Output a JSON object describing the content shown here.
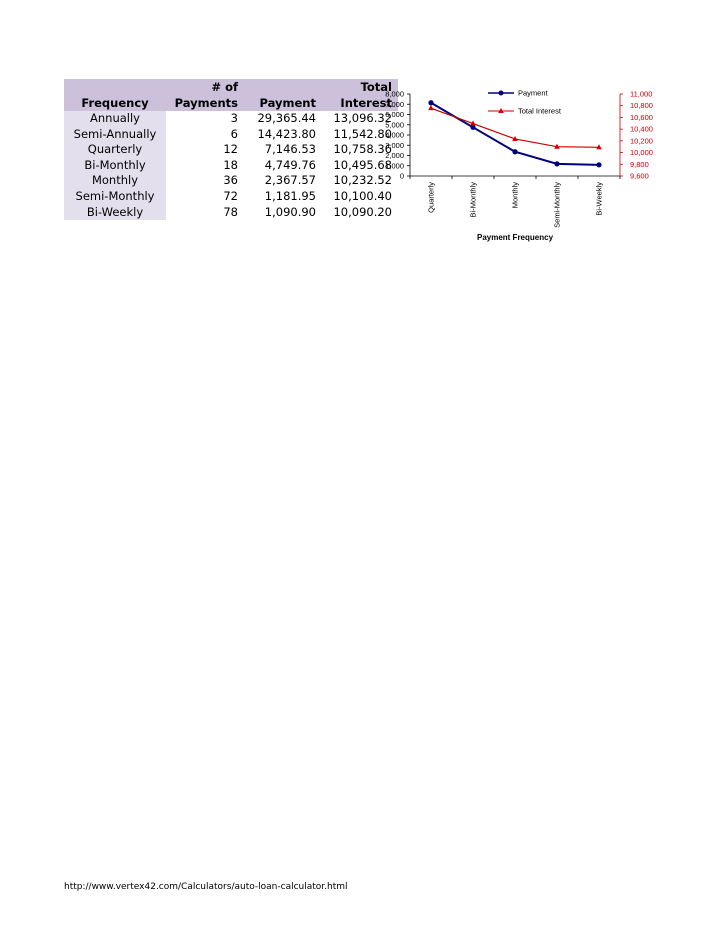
{
  "table": {
    "headers": {
      "frequency": [
        "",
        "Frequency"
      ],
      "num_payments": [
        "# of",
        "Payments"
      ],
      "payment": [
        "",
        "Payment"
      ],
      "total_interest": [
        "Total",
        "Interest"
      ]
    },
    "rows": [
      {
        "frequency": "Annually",
        "num_payments": "3",
        "payment": "29,365.44",
        "total_interest": "13,096.32"
      },
      {
        "frequency": "Semi-Annually",
        "num_payments": "6",
        "payment": "14,423.80",
        "total_interest": "11,542.80"
      },
      {
        "frequency": "Quarterly",
        "num_payments": "12",
        "payment": "7,146.53",
        "total_interest": "10,758.36"
      },
      {
        "frequency": "Bi-Monthly",
        "num_payments": "18",
        "payment": "4,749.76",
        "total_interest": "10,495.68"
      },
      {
        "frequency": "Monthly",
        "num_payments": "36",
        "payment": "2,367.57",
        "total_interest": "10,232.52"
      },
      {
        "frequency": "Semi-Monthly",
        "num_payments": "72",
        "payment": "1,181.95",
        "total_interest": "10,100.40"
      },
      {
        "frequency": "Bi-Weekly",
        "num_payments": "78",
        "payment": "1,090.90",
        "total_interest": "10,090.20"
      }
    ]
  },
  "chart_data": {
    "type": "line",
    "categories": [
      "Quarterly",
      "Bi-Monthly",
      "Monthly",
      "Semi-Monthly",
      "Bi-Weekly"
    ],
    "xlabel": "Payment Frequency",
    "series": [
      {
        "name": "Payment",
        "axis": "left",
        "color": "#000080",
        "marker": "circle",
        "values": [
          7146.53,
          4749.76,
          2367.57,
          1181.95,
          1090.9
        ]
      },
      {
        "name": "Total Interest",
        "axis": "right",
        "color": "#cc0000",
        "marker": "triangle",
        "values": [
          10758.36,
          10495.68,
          10232.52,
          10100.4,
          10090.2
        ]
      }
    ],
    "y_left": {
      "lim": [
        0,
        8000
      ],
      "ticks": [
        "0",
        "1,000",
        "2,000",
        "3,000",
        "4,000",
        "5,000",
        "6,000",
        "7,000",
        "8,000"
      ]
    },
    "y_right": {
      "lim": [
        9600,
        11000
      ],
      "ticks": [
        "9,600",
        "9,800",
        "10,000",
        "10,200",
        "10,400",
        "10,600",
        "10,800",
        "11,000"
      ]
    },
    "legend": "top-right",
    "grid": false
  },
  "footer": {
    "url": "http://www.vertex42.com/Calculators/auto-loan-calculator.html"
  },
  "colors": {
    "header_bg": "#ccc0da",
    "freq_cell_bg": "#e4dfec",
    "payment_line": "#000080",
    "interest_line": "#cc0000"
  }
}
